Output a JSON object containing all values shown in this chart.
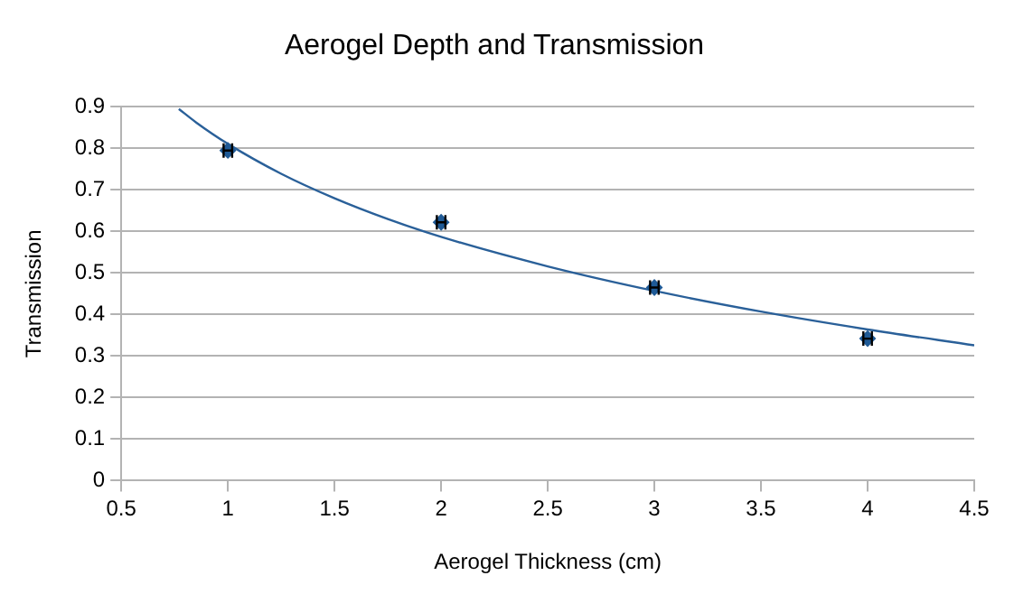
{
  "chart_data": {
    "type": "scatter",
    "title": "Aerogel Depth and Transmission",
    "xlabel": "Aerogel Thickness (cm)",
    "ylabel": "Transmission",
    "xlim": [
      0.5,
      4.5
    ],
    "xticks": [
      0.5,
      1,
      1.5,
      2,
      2.5,
      3,
      3.5,
      4,
      4.5
    ],
    "ylim": [
      0,
      0.9
    ],
    "yticks": [
      0,
      0.1,
      0.2,
      0.3,
      0.4,
      0.5,
      0.6,
      0.7,
      0.8,
      0.9
    ],
    "grid": "y",
    "legend": false,
    "marker": "diamond",
    "series": [
      {
        "type": "scatter",
        "color": "#1f5a96",
        "x": [
          1,
          2,
          3,
          4
        ],
        "values": [
          0.795,
          0.622,
          0.465,
          0.342
        ],
        "xerrors": [
          0.02,
          0.02,
          0.02,
          0.02
        ]
      },
      {
        "type": "line",
        "color": "#2a6099",
        "marker": "none",
        "x": [
          0.77,
          0.85,
          1,
          1.25,
          1.5,
          1.75,
          2,
          2.5,
          3,
          3.5,
          4,
          4.5
        ],
        "values": [
          0.895,
          0.863,
          0.811,
          0.739,
          0.68,
          0.63,
          0.587,
          0.516,
          0.457,
          0.407,
          0.364,
          0.326
        ]
      }
    ]
  }
}
